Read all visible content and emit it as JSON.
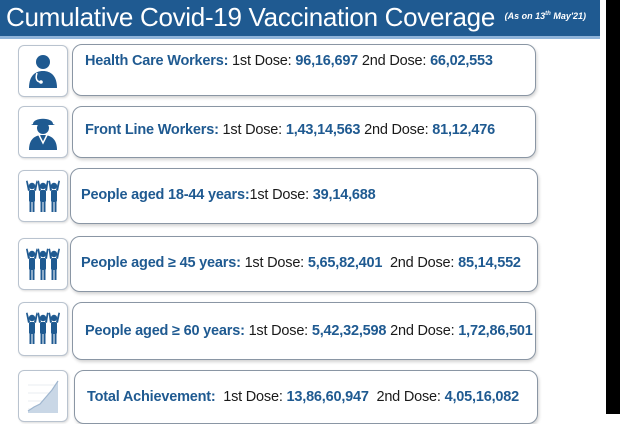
{
  "header": {
    "title": "Cumulative Covid-19 Vaccination Coverage",
    "as_on_prefix": "(As on 13",
    "as_on_sup": "th",
    "as_on_suffix": " May'21)"
  },
  "rows": [
    {
      "icon": "health-worker-icon",
      "category": "Health Care Workers:",
      "dose1_label": "1st Dose:",
      "dose1_value": "96,16,697",
      "dose2_label": "2nd Dose:",
      "dose2_value": "66,02,553"
    },
    {
      "icon": "front-line-worker-icon",
      "category": "Front Line Workers:",
      "dose1_label": "1st Dose:",
      "dose1_value": "1,43,14,563",
      "dose2_label": "2nd Dose:",
      "dose2_value": "81,12,476"
    },
    {
      "icon": "people-group-icon",
      "category": "People aged 18-44 years:",
      "dose1_label": "1st Dose:",
      "dose1_value": "39,14,688"
    },
    {
      "icon": "people-group-icon",
      "category": "People aged ≥ 45 years:",
      "dose1_label": "1st Dose:",
      "dose1_value": "5,65,82,401",
      "dose2_label": "2nd Dose:",
      "dose2_value": "85,14,552"
    },
    {
      "icon": "people-group-icon",
      "category": "People aged ≥ 60 years:",
      "dose1_label": "1st Dose:",
      "dose1_value": "5,42,32,598",
      "dose2_label": "2nd Dose:",
      "dose2_value": "1,72,86,501"
    },
    {
      "icon": "growth-chart-icon",
      "category": "Total Achievement:",
      "dose1_label": "1st Dose:",
      "dose1_value": "13,86,60,947",
      "dose2_label": "2nd Dose:",
      "dose2_value": "4,05,16,082"
    }
  ],
  "colors": {
    "header_bg": "#1f5a91",
    "accent": "#1f5a91",
    "text": "#1a1a1a"
  }
}
